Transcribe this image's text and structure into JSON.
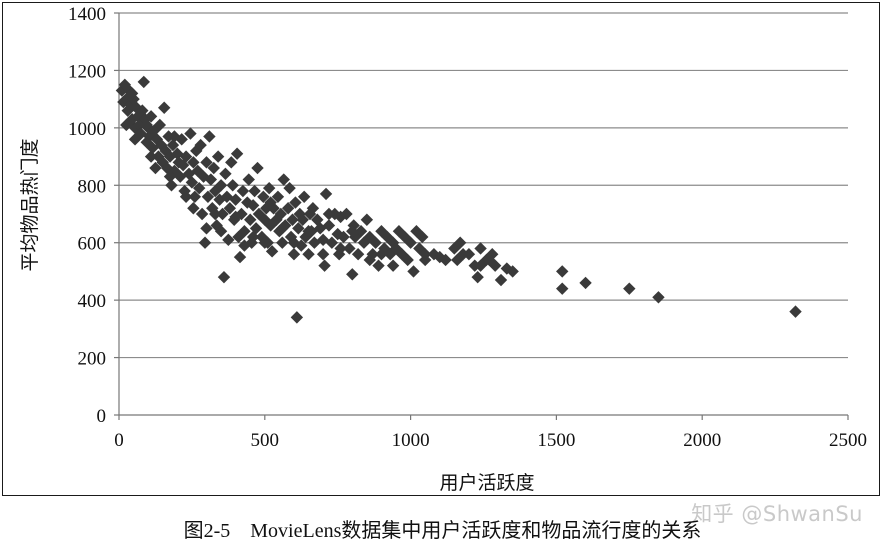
{
  "caption": "图2-5    MovieLens数据集中用户活跃度和物品流行度的关系",
  "watermark": "知乎 @ShwanSu",
  "chart_data": {
    "type": "scatter",
    "xlabel": "用户活跃度",
    "ylabel": "平均物品热门度",
    "xlim": [
      0,
      2500
    ],
    "ylim": [
      0,
      1400
    ],
    "xticks": [
      0,
      500,
      1000,
      1500,
      2000,
      2500
    ],
    "yticks": [
      0,
      200,
      400,
      600,
      800,
      1000,
      1200,
      1400
    ],
    "grid": "horizontal",
    "marker": "diamond",
    "colors": {
      "marker": "#3a3a3a",
      "grid": "#8c8c8c",
      "axis": "#777777"
    },
    "series": [
      {
        "points": [
          [
            10,
            1130
          ],
          [
            15,
            1090
          ],
          [
            20,
            1150
          ],
          [
            25,
            1100
          ],
          [
            30,
            1060
          ],
          [
            35,
            1130
          ],
          [
            40,
            1080
          ],
          [
            45,
            1030
          ],
          [
            50,
            1100
          ],
          [
            55,
            1000
          ],
          [
            60,
            1070
          ],
          [
            65,
            1040
          ],
          [
            70,
            1010
          ],
          [
            75,
            980
          ],
          [
            80,
            1060
          ],
          [
            85,
            1160
          ],
          [
            90,
            1030
          ],
          [
            95,
            950
          ],
          [
            100,
            1000
          ],
          [
            105,
            970
          ],
          [
            110,
            1040
          ],
          [
            115,
            930
          ],
          [
            120,
            990
          ],
          [
            130,
            960
          ],
          [
            135,
            900
          ],
          [
            140,
            1010
          ],
          [
            145,
            940
          ],
          [
            150,
            880
          ],
          [
            155,
            1070
          ],
          [
            160,
            920
          ],
          [
            165,
            860
          ],
          [
            170,
            970
          ],
          [
            175,
            900
          ],
          [
            180,
            800
          ],
          [
            185,
            940
          ],
          [
            190,
            850
          ],
          [
            200,
            910
          ],
          [
            205,
            880
          ],
          [
            210,
            830
          ],
          [
            215,
            960
          ],
          [
            220,
            870
          ],
          [
            225,
            780
          ],
          [
            230,
            900
          ],
          [
            240,
            840
          ],
          [
            245,
            980
          ],
          [
            250,
            810
          ],
          [
            255,
            880
          ],
          [
            260,
            760
          ],
          [
            265,
            920
          ],
          [
            270,
            850
          ],
          [
            275,
            790
          ],
          [
            280,
            940
          ],
          [
            285,
            700
          ],
          [
            290,
            830
          ],
          [
            295,
            600
          ],
          [
            300,
            880
          ],
          [
            305,
            760
          ],
          [
            310,
            970
          ],
          [
            315,
            820
          ],
          [
            320,
            720
          ],
          [
            325,
            860
          ],
          [
            330,
            780
          ],
          [
            335,
            660
          ],
          [
            340,
            900
          ],
          [
            345,
            750
          ],
          [
            350,
            800
          ],
          [
            355,
            700
          ],
          [
            360,
            480
          ],
          [
            365,
            840
          ],
          [
            370,
            760
          ],
          [
            375,
            610
          ],
          [
            380,
            720
          ],
          [
            385,
            880
          ],
          [
            390,
            800
          ],
          [
            395,
            680
          ],
          [
            400,
            750
          ],
          [
            405,
            910
          ],
          [
            410,
            620
          ],
          [
            415,
            550
          ],
          [
            420,
            700
          ],
          [
            425,
            780
          ],
          [
            430,
            640
          ],
          [
            440,
            740
          ],
          [
            445,
            820
          ],
          [
            450,
            680
          ],
          [
            455,
            600
          ],
          [
            460,
            730
          ],
          [
            465,
            780
          ],
          [
            470,
            650
          ],
          [
            475,
            860
          ],
          [
            480,
            700
          ],
          [
            490,
            620
          ],
          [
            495,
            760
          ],
          [
            500,
            680
          ],
          [
            505,
            720
          ],
          [
            510,
            600
          ],
          [
            515,
            790
          ],
          [
            520,
            660
          ],
          [
            525,
            570
          ],
          [
            530,
            720
          ],
          [
            540,
            680
          ],
          [
            545,
            760
          ],
          [
            550,
            640
          ],
          [
            555,
            700
          ],
          [
            560,
            600
          ],
          [
            565,
            820
          ],
          [
            570,
            660
          ],
          [
            580,
            720
          ],
          [
            585,
            790
          ],
          [
            590,
            620
          ],
          [
            595,
            680
          ],
          [
            600,
            560
          ],
          [
            605,
            740
          ],
          [
            610,
            340
          ],
          [
            615,
            650
          ],
          [
            620,
            700
          ],
          [
            625,
            590
          ],
          [
            630,
            680
          ],
          [
            635,
            760
          ],
          [
            640,
            620
          ],
          [
            650,
            560
          ],
          [
            655,
            700
          ],
          [
            660,
            640
          ],
          [
            665,
            720
          ],
          [
            670,
            600
          ],
          [
            680,
            680
          ],
          [
            690,
            650
          ],
          [
            700,
            610
          ],
          [
            705,
            520
          ],
          [
            710,
            770
          ],
          [
            720,
            660
          ],
          [
            730,
            600
          ],
          [
            740,
            700
          ],
          [
            750,
            630
          ],
          [
            755,
            560
          ],
          [
            760,
            690
          ],
          [
            770,
            620
          ],
          [
            780,
            700
          ],
          [
            790,
            580
          ],
          [
            800,
            490
          ],
          [
            805,
            660
          ],
          [
            810,
            620
          ],
          [
            820,
            560
          ],
          [
            830,
            640
          ],
          [
            840,
            600
          ],
          [
            850,
            680
          ],
          [
            860,
            620
          ],
          [
            870,
            560
          ],
          [
            880,
            600
          ],
          [
            890,
            520
          ],
          [
            900,
            640
          ],
          [
            910,
            580
          ],
          [
            920,
            620
          ],
          [
            930,
            560
          ],
          [
            940,
            600
          ],
          [
            950,
            580
          ],
          [
            960,
            640
          ],
          [
            970,
            560
          ],
          [
            980,
            620
          ],
          [
            990,
            540
          ],
          [
            1000,
            600
          ],
          [
            1010,
            500
          ],
          [
            1020,
            640
          ],
          [
            1030,
            580
          ],
          [
            1040,
            620
          ],
          [
            1050,
            540
          ],
          [
            1080,
            560
          ],
          [
            1100,
            550
          ],
          [
            1150,
            580
          ],
          [
            1160,
            540
          ],
          [
            1170,
            600
          ],
          [
            1200,
            560
          ],
          [
            1220,
            520
          ],
          [
            1230,
            480
          ],
          [
            1240,
            580
          ],
          [
            1260,
            540
          ],
          [
            1280,
            560
          ],
          [
            1290,
            520
          ],
          [
            1310,
            470
          ],
          [
            1330,
            510
          ],
          [
            1350,
            500
          ],
          [
            1520,
            500
          ],
          [
            1520,
            440
          ],
          [
            1600,
            460
          ],
          [
            1750,
            440
          ],
          [
            1850,
            410
          ],
          [
            2320,
            360
          ],
          [
            25,
            1010
          ],
          [
            45,
            1120
          ],
          [
            55,
            960
          ],
          [
            95,
            1010
          ],
          [
            110,
            900
          ],
          [
            125,
            860
          ],
          [
            175,
            830
          ],
          [
            190,
            970
          ],
          [
            230,
            760
          ],
          [
            255,
            720
          ],
          [
            300,
            650
          ],
          [
            330,
            700
          ],
          [
            350,
            640
          ],
          [
            400,
            690
          ],
          [
            430,
            590
          ],
          [
            460,
            620
          ],
          [
            500,
            600
          ],
          [
            520,
            740
          ],
          [
            560,
            650
          ],
          [
            600,
            600
          ],
          [
            650,
            640
          ],
          [
            700,
            560
          ],
          [
            720,
            700
          ],
          [
            760,
            580
          ],
          [
            800,
            640
          ],
          [
            860,
            540
          ],
          [
            900,
            560
          ],
          [
            940,
            520
          ],
          [
            1050,
            560
          ],
          [
            1120,
            540
          ],
          [
            1180,
            560
          ],
          [
            1240,
            520
          ],
          [
            1270,
            540
          ]
        ]
      }
    ]
  }
}
